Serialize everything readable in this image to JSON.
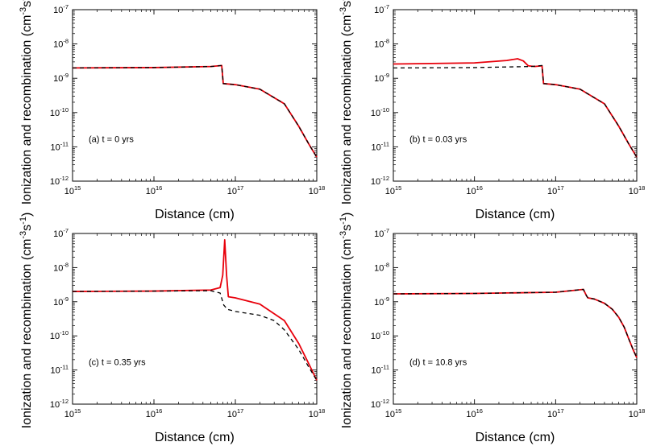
{
  "figure": {
    "ylabel": "Ionization and recombination (cm-3s-1)",
    "ylabel_base": "Ionization and recombination (cm",
    "ylabel_exp1": "-3",
    "ylabel_mid": "s",
    "ylabel_exp2": "-1",
    "ylabel_end": ")"
  },
  "colors": {
    "ionization": "#e8000b",
    "recombination": "#000000"
  },
  "chart_data": [
    {
      "type": "line",
      "panel_label": "(a) t = 0 yrs",
      "xlabel": "Distance (cm)",
      "xscale": "log",
      "yscale": "log",
      "xlim": [
        1000000000000000.0,
        1e+18
      ],
      "ylim": [
        1e-12,
        1e-07
      ],
      "x_ticks": [
        "10^15",
        "10^16",
        "10^17",
        "10^18"
      ],
      "y_ticks": [
        "10^-12",
        "10^-11",
        "10^-10",
        "10^-9",
        "10^-8",
        "10^-7"
      ],
      "series": [
        {
          "style": "solid",
          "color": "#e8000b",
          "x": [
            1000000000000000.0,
            1e+16,
            5e+16,
            6.8e+16,
            7.1e+16,
            1e+17,
            2e+17,
            4e+17,
            6e+17,
            8e+17,
            1e+18
          ],
          "y": [
            2e-09,
            2.05e-09,
            2.2e-09,
            2.35e-09,
            7e-10,
            6.5e-10,
            4.8e-10,
            1.8e-10,
            4e-11,
            1.2e-11,
            5e-12
          ]
        },
        {
          "style": "dashed",
          "color": "#000000",
          "x": [
            1000000000000000.0,
            1e+16,
            5e+16,
            6.8e+16,
            7.1e+16,
            1e+17,
            2e+17,
            4e+17,
            6e+17,
            8e+17,
            1e+18
          ],
          "y": [
            2e-09,
            2.05e-09,
            2.2e-09,
            2.35e-09,
            7e-10,
            6.5e-10,
            4.8e-10,
            1.8e-10,
            4e-11,
            1.2e-11,
            5e-12
          ]
        }
      ]
    },
    {
      "type": "line",
      "panel_label": "(b) t = 0.03 yrs",
      "xlabel": "Distance (cm)",
      "xscale": "log",
      "yscale": "log",
      "xlim": [
        1000000000000000.0,
        1e+18
      ],
      "ylim": [
        1e-12,
        1e-07
      ],
      "x_ticks": [
        "10^15",
        "10^16",
        "10^17",
        "10^18"
      ],
      "y_ticks": [
        "10^-12",
        "10^-11",
        "10^-10",
        "10^-9",
        "10^-8",
        "10^-7"
      ],
      "series": [
        {
          "style": "solid",
          "color": "#e8000b",
          "x": [
            1000000000000000.0,
            1e+16,
            2.5e+16,
            3.4e+16,
            4e+16,
            4.6e+16,
            5.5e+16,
            6.8e+16,
            7.1e+16,
            1e+17,
            2e+17,
            4e+17,
            6e+17,
            8e+17,
            1e+18
          ],
          "y": [
            2.6e-09,
            2.8e-09,
            3.3e-09,
            3.7e-09,
            3.2e-09,
            2.3e-09,
            2.2e-09,
            2.3e-09,
            7e-10,
            6.5e-10,
            4.8e-10,
            1.8e-10,
            4e-11,
            1.2e-11,
            5e-12
          ]
        },
        {
          "style": "dashed",
          "color": "#000000",
          "x": [
            1000000000000000.0,
            1e+16,
            5e+16,
            6.8e+16,
            7.1e+16,
            1e+17,
            2e+17,
            4e+17,
            6e+17,
            8e+17,
            1e+18
          ],
          "y": [
            2e-09,
            2.05e-09,
            2.2e-09,
            2.35e-09,
            7e-10,
            6.5e-10,
            4.8e-10,
            1.8e-10,
            4e-11,
            1.2e-11,
            5e-12
          ]
        }
      ]
    },
    {
      "type": "line",
      "panel_label": "(c) t = 0.35 yrs",
      "xlabel": "Distance (cm)",
      "xscale": "log",
      "yscale": "log",
      "xlim": [
        1000000000000000.0,
        1e+18
      ],
      "ylim": [
        1e-12,
        1e-07
      ],
      "x_ticks": [
        "10^15",
        "10^16",
        "10^17",
        "10^18"
      ],
      "y_ticks": [
        "10^-12",
        "10^-11",
        "10^-10",
        "10^-9",
        "10^-8",
        "10^-7"
      ],
      "series": [
        {
          "style": "solid",
          "color": "#e8000b",
          "x": [
            1000000000000000.0,
            1e+16,
            5e+16,
            6.5e+16,
            7e+16,
            7.4e+16,
            7.8e+16,
            8.2e+16,
            1e+17,
            2e+17,
            4e+17,
            6e+17,
            8e+17,
            1e+18
          ],
          "y": [
            2e-09,
            2.05e-09,
            2.2e-09,
            2.6e-09,
            6e-09,
            6.5e-08,
            6e-09,
            1.4e-09,
            1.3e-09,
            8.5e-10,
            2.8e-10,
            6e-11,
            1.5e-11,
            5e-12
          ]
        },
        {
          "style": "dashed",
          "color": "#000000",
          "x": [
            1000000000000000.0,
            1e+16,
            5e+16,
            6.5e+16,
            7.2e+16,
            8e+16,
            1e+17,
            2e+17,
            3e+17,
            4e+17,
            6e+17,
            8e+17,
            1e+18
          ],
          "y": [
            2e-09,
            2.05e-09,
            2.1e-09,
            1.8e-09,
            8e-10,
            6e-10,
            5.2e-10,
            4e-10,
            2.8e-10,
            1.5e-10,
            4e-11,
            1.2e-11,
            5e-12
          ]
        }
      ]
    },
    {
      "type": "line",
      "panel_label": "(d) t = 10.8 yrs",
      "xlabel": "Distance (cm)",
      "xscale": "log",
      "yscale": "log",
      "xlim": [
        1000000000000000.0,
        1e+18
      ],
      "ylim": [
        1e-12,
        1e-07
      ],
      "x_ticks": [
        "10^15",
        "10^16",
        "10^17",
        "10^18"
      ],
      "y_ticks": [
        "10^-12",
        "10^-11",
        "10^-10",
        "10^-9",
        "10^-8",
        "10^-7"
      ],
      "series": [
        {
          "style": "solid",
          "color": "#e8000b",
          "x": [
            1000000000000000.0,
            1e+16,
            1e+17,
            2.2e+17,
            2.4e+17,
            2.5e+17,
            3e+17,
            4e+17,
            5e+17,
            6e+17,
            7e+17,
            8e+17,
            9e+17,
            1e+18
          ],
          "y": [
            1.7e-09,
            1.75e-09,
            1.9e-09,
            2.3e-09,
            1.5e-09,
            1.3e-09,
            1.2e-09,
            9e-10,
            6e-10,
            3.5e-10,
            1.8e-10,
            8e-11,
            4e-11,
            2.3e-11
          ]
        },
        {
          "style": "dashed",
          "color": "#000000",
          "x": [
            1000000000000000.0,
            1e+16,
            1e+17,
            2.2e+17,
            2.4e+17,
            2.5e+17,
            3e+17,
            4e+17,
            5e+17,
            6e+17,
            7e+17,
            8e+17,
            9e+17,
            1e+18
          ],
          "y": [
            1.7e-09,
            1.75e-09,
            1.9e-09,
            2.3e-09,
            1.5e-09,
            1.3e-09,
            1.2e-09,
            9e-10,
            6e-10,
            3.5e-10,
            1.8e-10,
            8e-11,
            4e-11,
            2.3e-11
          ]
        }
      ]
    }
  ]
}
